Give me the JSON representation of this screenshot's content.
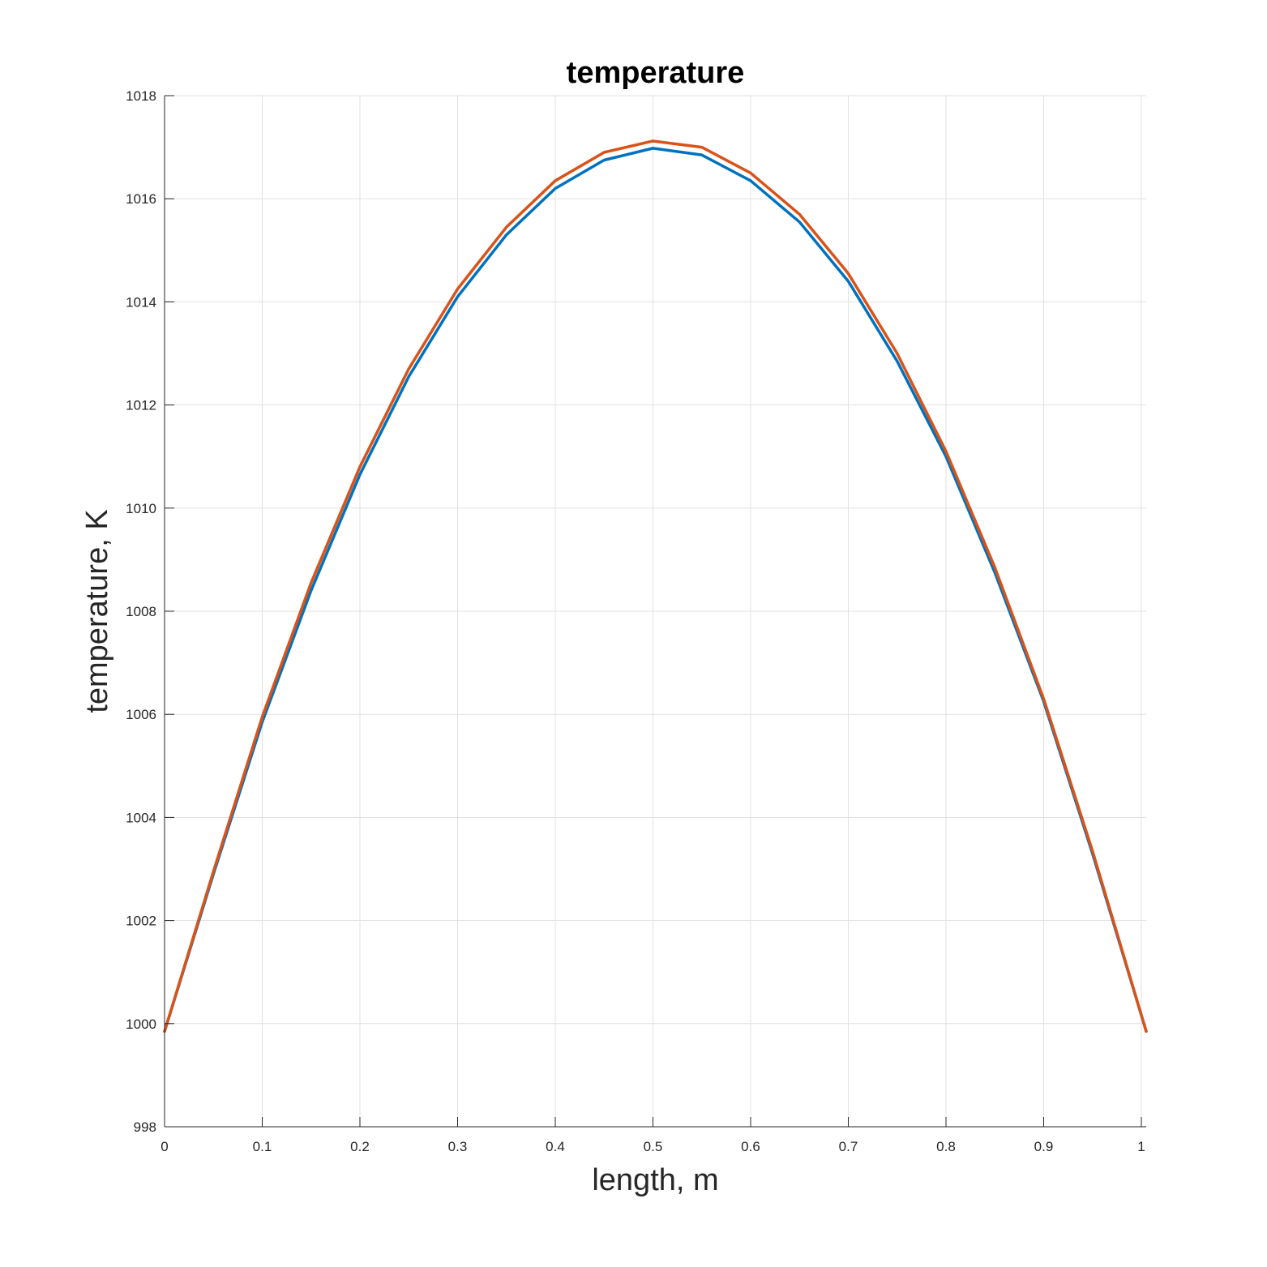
{
  "chart_data": {
    "type": "line",
    "title": "temperature",
    "xlabel": "length, m",
    "ylabel": "temperature, K",
    "xlim": [
      0,
      1.005
    ],
    "ylim": [
      998,
      1018
    ],
    "xticks": [
      0,
      0.1,
      0.2,
      0.3,
      0.4,
      0.5,
      0.6,
      0.7,
      0.8,
      0.9,
      1
    ],
    "xtick_labels": [
      "0",
      "0.1",
      "0.2",
      "0.3",
      "0.4",
      "0.5",
      "0.6",
      "0.7",
      "0.8",
      "0.9",
      "1"
    ],
    "yticks": [
      998,
      1000,
      1002,
      1004,
      1006,
      1008,
      1010,
      1012,
      1014,
      1016,
      1018
    ],
    "ytick_labels": [
      "998",
      "1000",
      "1002",
      "1004",
      "1006",
      "1008",
      "1010",
      "1012",
      "1014",
      "1016",
      "1018"
    ],
    "grid": true,
    "series": [
      {
        "color": "#0072BD",
        "x": [
          0,
          0.05,
          0.1,
          0.15,
          0.2,
          0.25,
          0.3,
          0.35,
          0.4,
          0.45,
          0.5,
          0.55,
          0.6,
          0.65,
          0.7,
          0.75,
          0.8,
          0.85,
          0.9,
          0.95,
          1.005
        ],
        "y": [
          999.85,
          1002.9,
          1005.85,
          1008.4,
          1010.65,
          1012.55,
          1014.1,
          1015.3,
          1016.2,
          1016.75,
          1016.98,
          1016.85,
          1016.35,
          1015.55,
          1014.4,
          1012.85,
          1011.0,
          1008.75,
          1006.25,
          1003.3,
          999.85
        ]
      },
      {
        "color": "#D95319",
        "x": [
          0,
          0.05,
          0.1,
          0.15,
          0.2,
          0.25,
          0.3,
          0.35,
          0.4,
          0.45,
          0.5,
          0.55,
          0.6,
          0.65,
          0.7,
          0.75,
          0.8,
          0.85,
          0.9,
          0.95,
          1.005
        ],
        "y": [
          999.85,
          1002.95,
          1005.95,
          1008.55,
          1010.8,
          1012.7,
          1014.25,
          1015.45,
          1016.35,
          1016.9,
          1017.12,
          1017.0,
          1016.5,
          1015.7,
          1014.55,
          1013.0,
          1011.1,
          1008.85,
          1006.3,
          1003.35,
          999.85
        ]
      }
    ]
  }
}
